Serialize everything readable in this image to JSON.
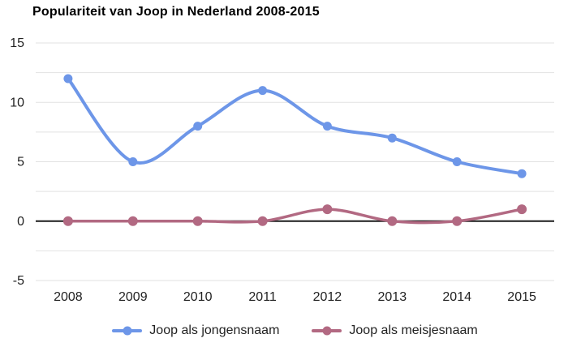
{
  "chart_data": {
    "type": "line",
    "title": "Populariteit van Joop in Nederland 2008-2015",
    "categories": [
      "2008",
      "2009",
      "2010",
      "2011",
      "2012",
      "2013",
      "2014",
      "2015"
    ],
    "series": [
      {
        "name": "Joop als jongensnaam",
        "color": "#6d96e8",
        "values": [
          12,
          5,
          8,
          11,
          8,
          7,
          5,
          4
        ]
      },
      {
        "name": "Joop als meisjesnaam",
        "color": "#b26982",
        "values": [
          0,
          0,
          0,
          0,
          1,
          0,
          0,
          1
        ]
      }
    ],
    "xlabel": "",
    "ylabel": "",
    "ylim": [
      -5,
      15
    ],
    "y_ticks": [
      15,
      10,
      5,
      0,
      -5
    ],
    "grid_step": 2.5,
    "grid": true,
    "smooth": true,
    "legend_position": "bottom",
    "colors": {
      "grid_color": "#e2e2e2",
      "zero_line_color": "#1c1c1c",
      "tick_text_color": "#222222",
      "title_color": "#000000",
      "background": "#ffffff"
    }
  }
}
